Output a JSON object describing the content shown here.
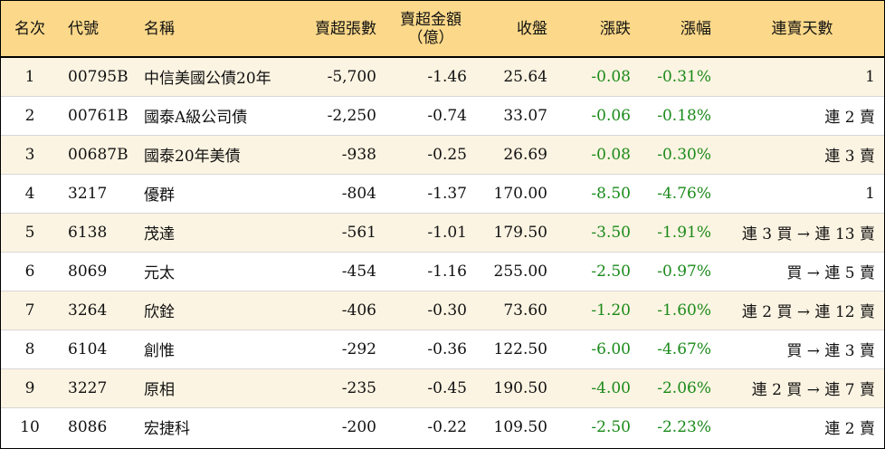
{
  "colors": {
    "header_bg": "#fcd98a",
    "odd_row_bg": "#fcf4e2",
    "change_color": "#1a8a1a"
  },
  "headers": {
    "rank": "名次",
    "code": "代號",
    "name": "名稱",
    "net_sell_lots": "賣超張數",
    "net_sell_amount_line1": "賣超金額",
    "net_sell_amount_line2": "（億）",
    "close": "收盤",
    "change": "漲跌",
    "change_pct": "漲幅",
    "consecutive": "連賣天數"
  },
  "rows": [
    {
      "rank": "1",
      "code": "00795B",
      "name": "中信美國公債20年",
      "lots": "-5,700",
      "amount": "-1.46",
      "close": "25.64",
      "change": "-0.08",
      "pct": "-0.31%",
      "streak": "1"
    },
    {
      "rank": "2",
      "code": "00761B",
      "name": "國泰A級公司債",
      "lots": "-2,250",
      "amount": "-0.74",
      "close": "33.07",
      "change": "-0.06",
      "pct": "-0.18%",
      "streak": "連 2 賣"
    },
    {
      "rank": "3",
      "code": "00687B",
      "name": "國泰20年美債",
      "lots": "-938",
      "amount": "-0.25",
      "close": "26.69",
      "change": "-0.08",
      "pct": "-0.30%",
      "streak": "連 3 賣"
    },
    {
      "rank": "4",
      "code": "3217",
      "name": "優群",
      "lots": "-804",
      "amount": "-1.37",
      "close": "170.00",
      "change": "-8.50",
      "pct": "-4.76%",
      "streak": "1"
    },
    {
      "rank": "5",
      "code": "6138",
      "name": "茂達",
      "lots": "-561",
      "amount": "-1.01",
      "close": "179.50",
      "change": "-3.50",
      "pct": "-1.91%",
      "streak": "連 3 買 → 連 13 賣"
    },
    {
      "rank": "6",
      "code": "8069",
      "name": "元太",
      "lots": "-454",
      "amount": "-1.16",
      "close": "255.00",
      "change": "-2.50",
      "pct": "-0.97%",
      "streak": "買 → 連 5 賣"
    },
    {
      "rank": "7",
      "code": "3264",
      "name": "欣銓",
      "lots": "-406",
      "amount": "-0.30",
      "close": "73.60",
      "change": "-1.20",
      "pct": "-1.60%",
      "streak": "連 2 買 → 連 12 賣"
    },
    {
      "rank": "8",
      "code": "6104",
      "name": "創惟",
      "lots": "-292",
      "amount": "-0.36",
      "close": "122.50",
      "change": "-6.00",
      "pct": "-4.67%",
      "streak": "買 → 連 3 賣"
    },
    {
      "rank": "9",
      "code": "3227",
      "name": "原相",
      "lots": "-235",
      "amount": "-0.45",
      "close": "190.50",
      "change": "-4.00",
      "pct": "-2.06%",
      "streak": "連 2 買 → 連 7 賣"
    },
    {
      "rank": "10",
      "code": "8086",
      "name": "宏捷科",
      "lots": "-200",
      "amount": "-0.22",
      "close": "109.50",
      "change": "-2.50",
      "pct": "-2.23%",
      "streak": "連 2 賣"
    }
  ]
}
